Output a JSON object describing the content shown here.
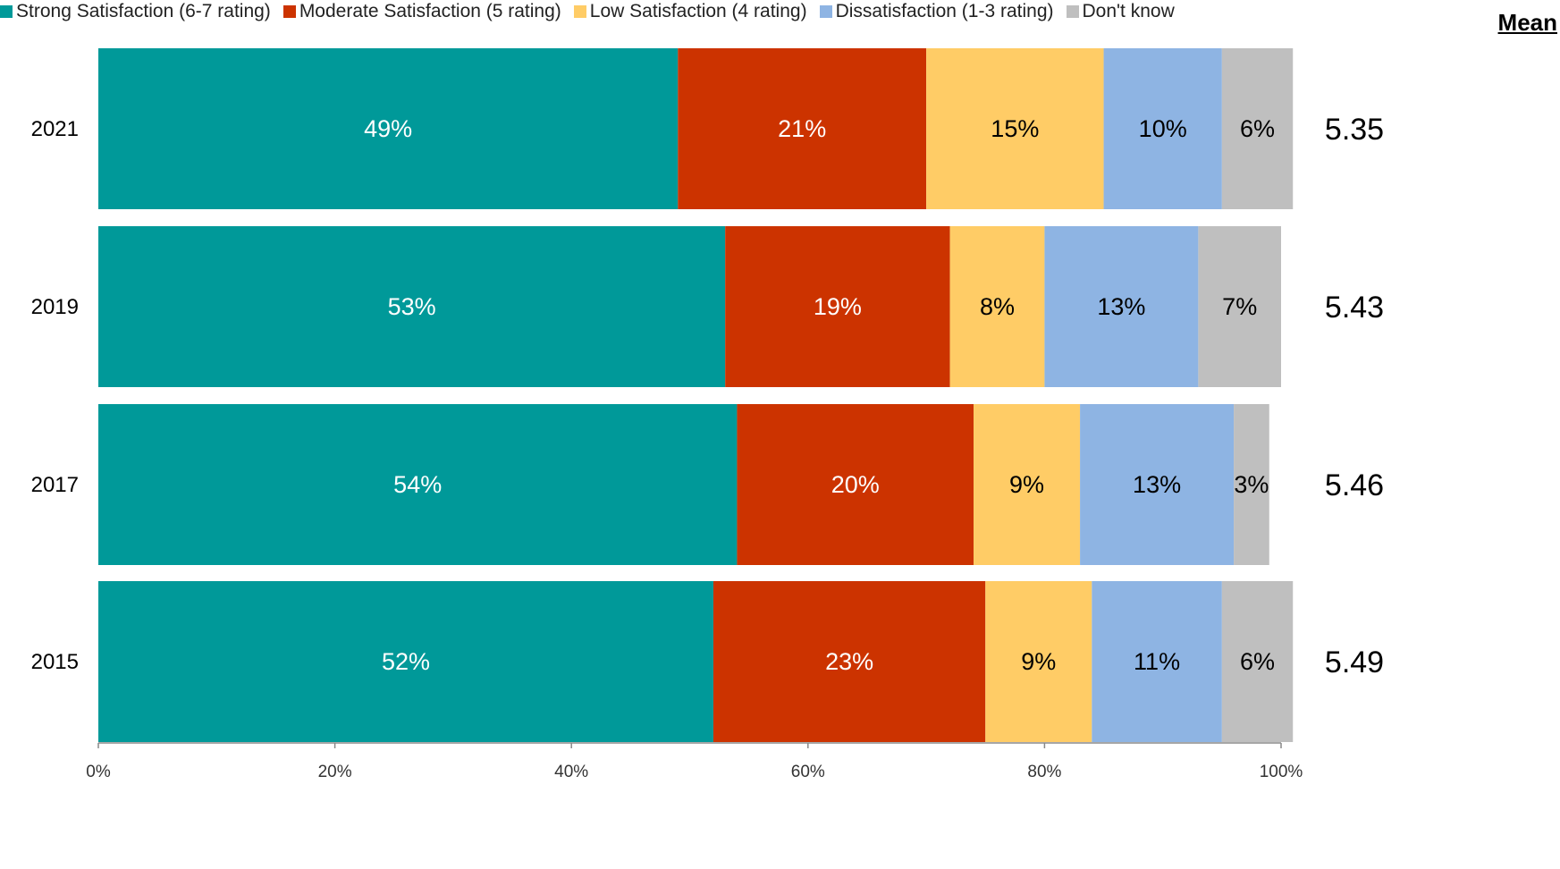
{
  "chart_data": {
    "type": "bar",
    "orientation": "horizontal",
    "stacked": true,
    "categories": [
      "2021",
      "2019",
      "2017",
      "2015"
    ],
    "series": [
      {
        "name": "Strong Satisfaction (6-7 rating)",
        "color": "#009999",
        "label_color": "#ffffff",
        "values": [
          49,
          53,
          54,
          52
        ]
      },
      {
        "name": "Moderate Satisfaction (5 rating)",
        "color": "#cc3300",
        "label_color": "#ffffff",
        "values": [
          21,
          19,
          20,
          23
        ]
      },
      {
        "name": "Low Satisfaction (4 rating)",
        "color": "#ffcc66",
        "label_color": "#000000",
        "values": [
          15,
          8,
          9,
          9
        ]
      },
      {
        "name": "Dissatisfaction (1-3 rating)",
        "color": "#8eb4e3",
        "label_color": "#000000",
        "values": [
          10,
          13,
          13,
          11
        ]
      },
      {
        "name": "Don't know",
        "color": "#bfbfbf",
        "label_color": "#000000",
        "values": [
          6,
          7,
          3,
          6
        ]
      }
    ],
    "xlim": [
      0,
      100
    ],
    "xticks": [
      "0%",
      "20%",
      "40%",
      "60%",
      "80%",
      "100%"
    ],
    "legend_position": "top",
    "grid": false
  },
  "mean": {
    "header": "Mean",
    "values": [
      "5.35",
      "5.43",
      "5.46",
      "5.49"
    ]
  }
}
